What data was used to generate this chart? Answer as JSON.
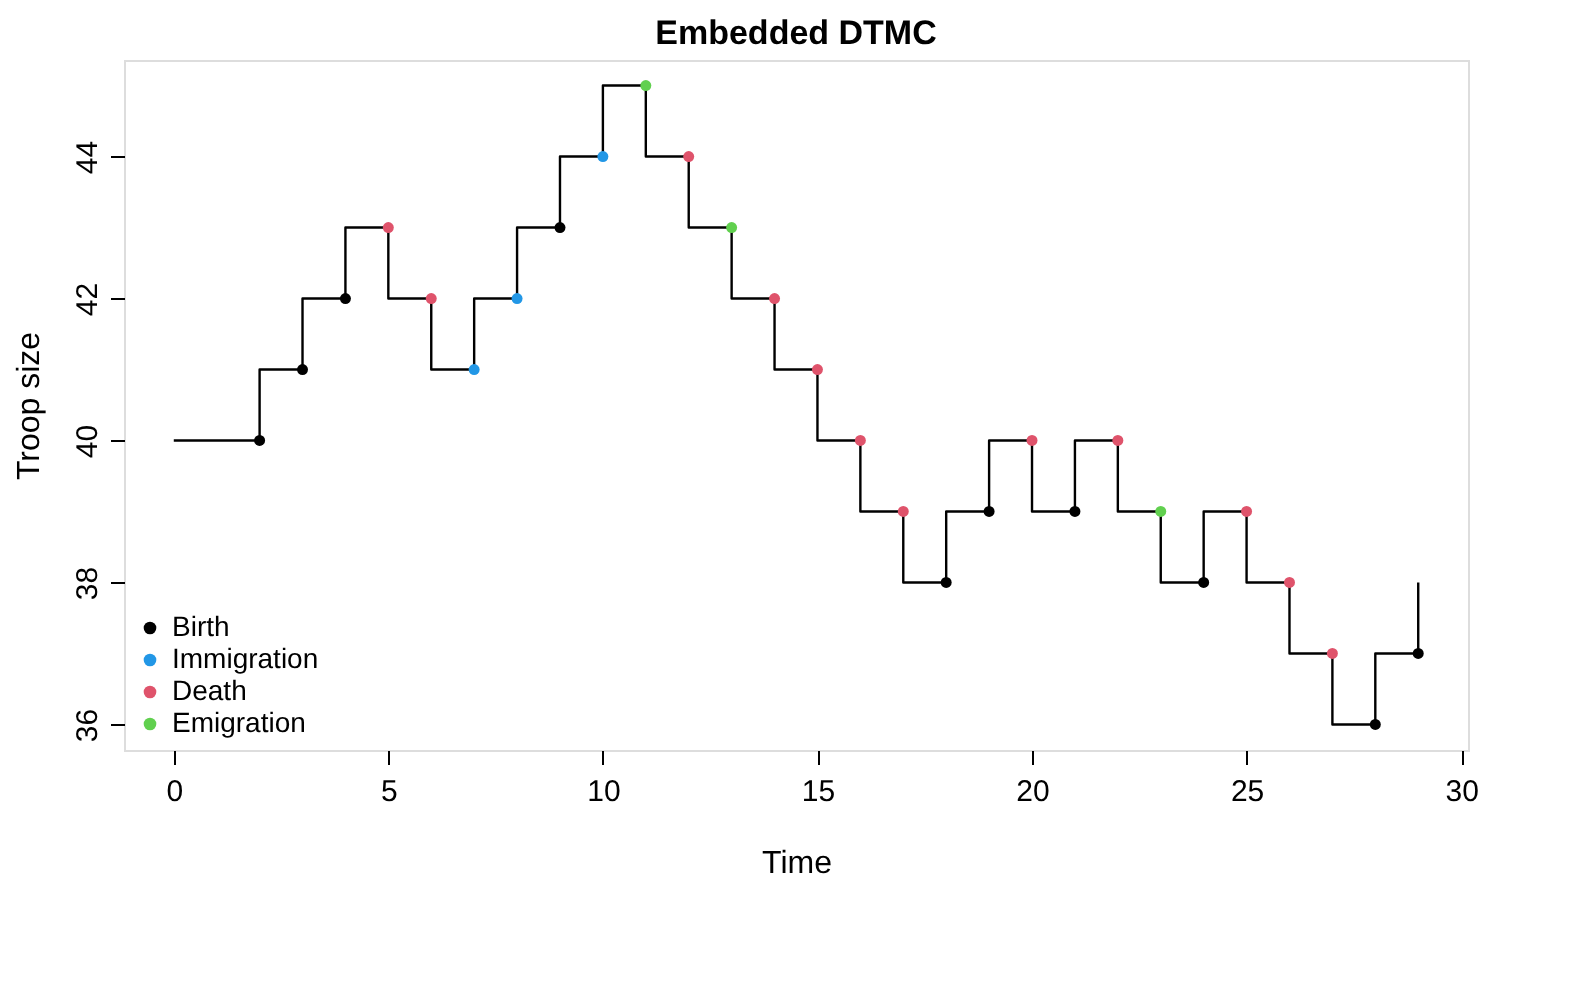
{
  "chart_data": {
    "type": "step",
    "title": "Embedded DTMC",
    "xlabel": "Time",
    "ylabel": "Troop size",
    "xlim": [
      -1.16,
      30.16
    ],
    "xticks": [
      0,
      5,
      10,
      15,
      20,
      25,
      30
    ],
    "ylim": [
      35.64,
      45.36
    ],
    "yticks": [
      36,
      38,
      40,
      42,
      44
    ],
    "grid": false,
    "legend": "bottom left",
    "line_style": "solid",
    "series": [
      {
        "marker": "none",
        "color": "#000000",
        "x": [
          0,
          2,
          3,
          4,
          5,
          6,
          7,
          8,
          9,
          10,
          11,
          12,
          13,
          14,
          15,
          16,
          17,
          18,
          19,
          20,
          21,
          22,
          23,
          24,
          25,
          26,
          27,
          28,
          29
        ],
        "values": [
          40,
          41,
          42,
          43,
          42,
          41,
          42,
          43,
          44,
          45,
          44,
          43,
          42,
          41,
          40,
          39,
          38,
          39,
          40,
          39,
          40,
          39,
          38,
          39,
          38,
          37,
          36,
          37,
          38
        ]
      },
      {
        "type": "scatter",
        "marker": "circle",
        "name": "Birth",
        "color": "#000000",
        "x": [
          2,
          3,
          4,
          9,
          18,
          19,
          21,
          24,
          28,
          29
        ],
        "values": [
          40,
          41,
          42,
          43,
          38,
          39,
          39,
          38,
          36,
          37
        ]
      },
      {
        "type": "scatter",
        "marker": "circle",
        "name": "Immigration",
        "color": "#2297e6",
        "x": [
          7,
          8,
          10
        ],
        "values": [
          41,
          42,
          44
        ]
      },
      {
        "type": "scatter",
        "marker": "circle",
        "name": "Death",
        "color": "#df536b",
        "x": [
          5,
          6,
          12,
          14,
          15,
          16,
          17,
          20,
          22,
          25,
          26,
          27
        ],
        "values": [
          43,
          42,
          44,
          42,
          41,
          40,
          39,
          40,
          40,
          39,
          38,
          37
        ]
      },
      {
        "type": "scatter",
        "marker": "circle",
        "name": "Emigration",
        "color": "#61d04f",
        "x": [
          11,
          13,
          23
        ],
        "values": [
          45,
          43,
          39
        ]
      }
    ]
  }
}
